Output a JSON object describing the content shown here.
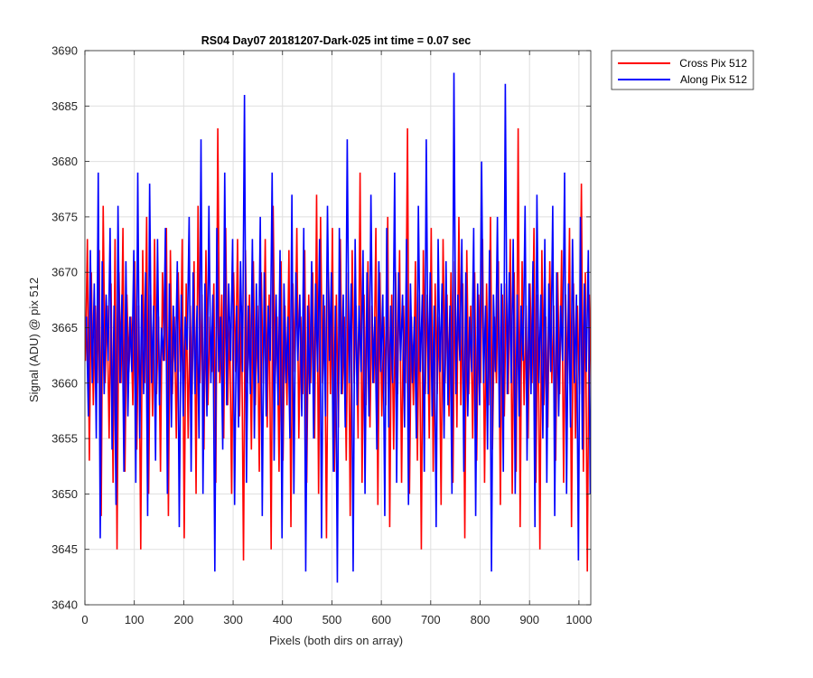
{
  "chart_data": {
    "type": "line",
    "title": "RS04 Day07 20181207-Dark-025 int time = 0.07 sec",
    "xlabel": "Pixels (both dirs on array)",
    "ylabel": "Signal (ADU) @ pix 512",
    "xlim": [
      0,
      1024
    ],
    "ylim": [
      3640,
      3690
    ],
    "xticks": [
      0,
      100,
      200,
      300,
      400,
      500,
      600,
      700,
      800,
      900,
      1000
    ],
    "yticks": [
      3640,
      3645,
      3650,
      3655,
      3660,
      3665,
      3670,
      3675,
      3680,
      3685,
      3690
    ],
    "grid": true,
    "legend_position": "outside-top-right",
    "colors": {
      "cross": "#ff0000",
      "along": "#0000ff",
      "axis": "#262626",
      "grid": "#dfdfdf"
    },
    "series": [
      {
        "name": "Cross Pix 512",
        "color": "#ff0000",
        "x_start": 1,
        "x_step": 4,
        "values": [
          3662,
          3673,
          3653,
          3670,
          3658,
          3667,
          3660,
          3672,
          3648,
          3676,
          3660,
          3667,
          3655,
          3669,
          3651,
          3673,
          3645,
          3670,
          3660,
          3674,
          3652,
          3668,
          3661,
          3666,
          3658,
          3671,
          3654,
          3667,
          3645,
          3672,
          3660,
          3675,
          3650,
          3668,
          3657,
          3673,
          3659,
          3666,
          3652,
          3670,
          3662,
          3674,
          3648,
          3672,
          3659,
          3666,
          3655,
          3670,
          3661,
          3673,
          3646,
          3669,
          3655,
          3667,
          3659,
          3671,
          3650,
          3676,
          3660,
          3668,
          3654,
          3672,
          3658,
          3666,
          3661,
          3669,
          3651,
          3683,
          3660,
          3668,
          3655,
          3674,
          3658,
          3666,
          3650,
          3670,
          3661,
          3673,
          3657,
          3667,
          3644,
          3672,
          3660,
          3668,
          3654,
          3671,
          3658,
          3667,
          3652,
          3670,
          3660,
          3673,
          3656,
          3668,
          3645,
          3676,
          3660,
          3666,
          3652,
          3671,
          3653,
          3667,
          3658,
          3672,
          3647,
          3669,
          3661,
          3674,
          3655,
          3666,
          3659,
          3672,
          3651,
          3668,
          3660,
          3670,
          3655,
          3677,
          3650,
          3675,
          3660,
          3667,
          3646,
          3670,
          3659,
          3674,
          3652,
          3668,
          3656,
          3673,
          3659,
          3666,
          3653,
          3670,
          3648,
          3672,
          3660,
          3667,
          3655,
          3679,
          3651,
          3668,
          3658,
          3671,
          3656,
          3667,
          3660,
          3674,
          3649,
          3670,
          3657,
          3666,
          3658,
          3675,
          3647,
          3668,
          3654,
          3670,
          3659,
          3672,
          3651,
          3667,
          3660,
          3683,
          3650,
          3666,
          3658,
          3671,
          3653,
          3668,
          3645,
          3672,
          3659,
          3668,
          3655,
          3674,
          3652,
          3669,
          3659,
          3666,
          3649,
          3673,
          3660,
          3668,
          3657,
          3670,
          3651,
          3671,
          3656,
          3675,
          3658,
          3669,
          3646,
          3672,
          3659,
          3667,
          3655,
          3670,
          3653,
          3668,
          3660,
          3673,
          3651,
          3669,
          3658,
          3675,
          3654,
          3666,
          3660,
          3671,
          3649,
          3668,
          3657,
          3669,
          3659,
          3673,
          3650,
          3670,
          3652,
          3683,
          3647,
          3671,
          3658,
          3667,
          3655,
          3669,
          3660,
          3674,
          3651,
          3668,
          3645,
          3672,
          3658,
          3666,
          3656,
          3671,
          3660,
          3667,
          3653,
          3670,
          3659,
          3672,
          3651,
          3668,
          3660,
          3674,
          3647,
          3669,
          3655,
          3667,
          3659,
          3678,
          3652,
          3670,
          3643,
          3668,
          3659,
          3667,
          3656,
          3671,
          3660,
          3669,
          3651,
          3672,
          3658,
          3667
        ]
      },
      {
        "name": "Along Pix 512",
        "color": "#0000ff",
        "x_start": 3,
        "x_step": 4,
        "values": [
          3666,
          3657,
          3672,
          3660,
          3669,
          3655,
          3679,
          3646,
          3671,
          3659,
          3668,
          3662,
          3674,
          3654,
          3667,
          3649,
          3676,
          3660,
          3668,
          3652,
          3671,
          3657,
          3666,
          3661,
          3672,
          3651,
          3679,
          3655,
          3668,
          3659,
          3670,
          3648,
          3678,
          3660,
          3667,
          3653,
          3673,
          3658,
          3665,
          3662,
          3674,
          3650,
          3669,
          3656,
          3667,
          3661,
          3671,
          3647,
          3668,
          3657,
          3666,
          3663,
          3675,
          3652,
          3670,
          3659,
          3667,
          3655,
          3682,
          3650,
          3669,
          3657,
          3676,
          3660,
          3668,
          3643,
          3674,
          3661,
          3666,
          3654,
          3679,
          3658,
          3669,
          3662,
          3673,
          3649,
          3667,
          3656,
          3671,
          3661,
          3686,
          3651,
          3667,
          3659,
          3673,
          3655,
          3669,
          3660,
          3675,
          3648,
          3670,
          3657,
          3667,
          3662,
          3679,
          3653,
          3668,
          3658,
          3672,
          3646,
          3669,
          3660,
          3666,
          3655,
          3677,
          3650,
          3670,
          3662,
          3668,
          3657,
          3674,
          3643,
          3667,
          3659,
          3671,
          3655,
          3669,
          3661,
          3673,
          3646,
          3668,
          3657,
          3676,
          3662,
          3670,
          3652,
          3667,
          3642,
          3674,
          3659,
          3668,
          3656,
          3682,
          3660,
          3669,
          3643,
          3673,
          3658,
          3667,
          3661,
          3672,
          3650,
          3670,
          3657,
          3677,
          3660,
          3666,
          3654,
          3671,
          3661,
          3668,
          3648,
          3674,
          3656,
          3667,
          3660,
          3679,
          3651,
          3670,
          3662,
          3668,
          3656,
          3673,
          3649,
          3669,
          3660,
          3666,
          3655,
          3676,
          3661,
          3668,
          3652,
          3682,
          3659,
          3670,
          3657,
          3667,
          3647,
          3673,
          3661,
          3669,
          3655,
          3671,
          3658,
          3667,
          3650,
          3688,
          3659,
          3668,
          3662,
          3673,
          3652,
          3670,
          3657,
          3666,
          3661,
          3674,
          3648,
          3669,
          3658,
          3680,
          3660,
          3667,
          3654,
          3672,
          3643,
          3668,
          3661,
          3675,
          3656,
          3669,
          3652,
          3687,
          3659,
          3670,
          3660,
          3673,
          3650,
          3668,
          3657,
          3667,
          3662,
          3676,
          3653,
          3669,
          3659,
          3671,
          3647,
          3677,
          3660,
          3668,
          3655,
          3673,
          3651,
          3669,
          3661,
          3676,
          3648,
          3670,
          3657,
          3667,
          3662,
          3679,
          3650,
          3669,
          3656,
          3673,
          3660,
          3668,
          3644,
          3675,
          3654,
          3669,
          3661,
          3672,
          3650,
          3668,
          3657,
          3670,
          3654,
          3649,
          3672,
          3644
        ]
      }
    ]
  }
}
